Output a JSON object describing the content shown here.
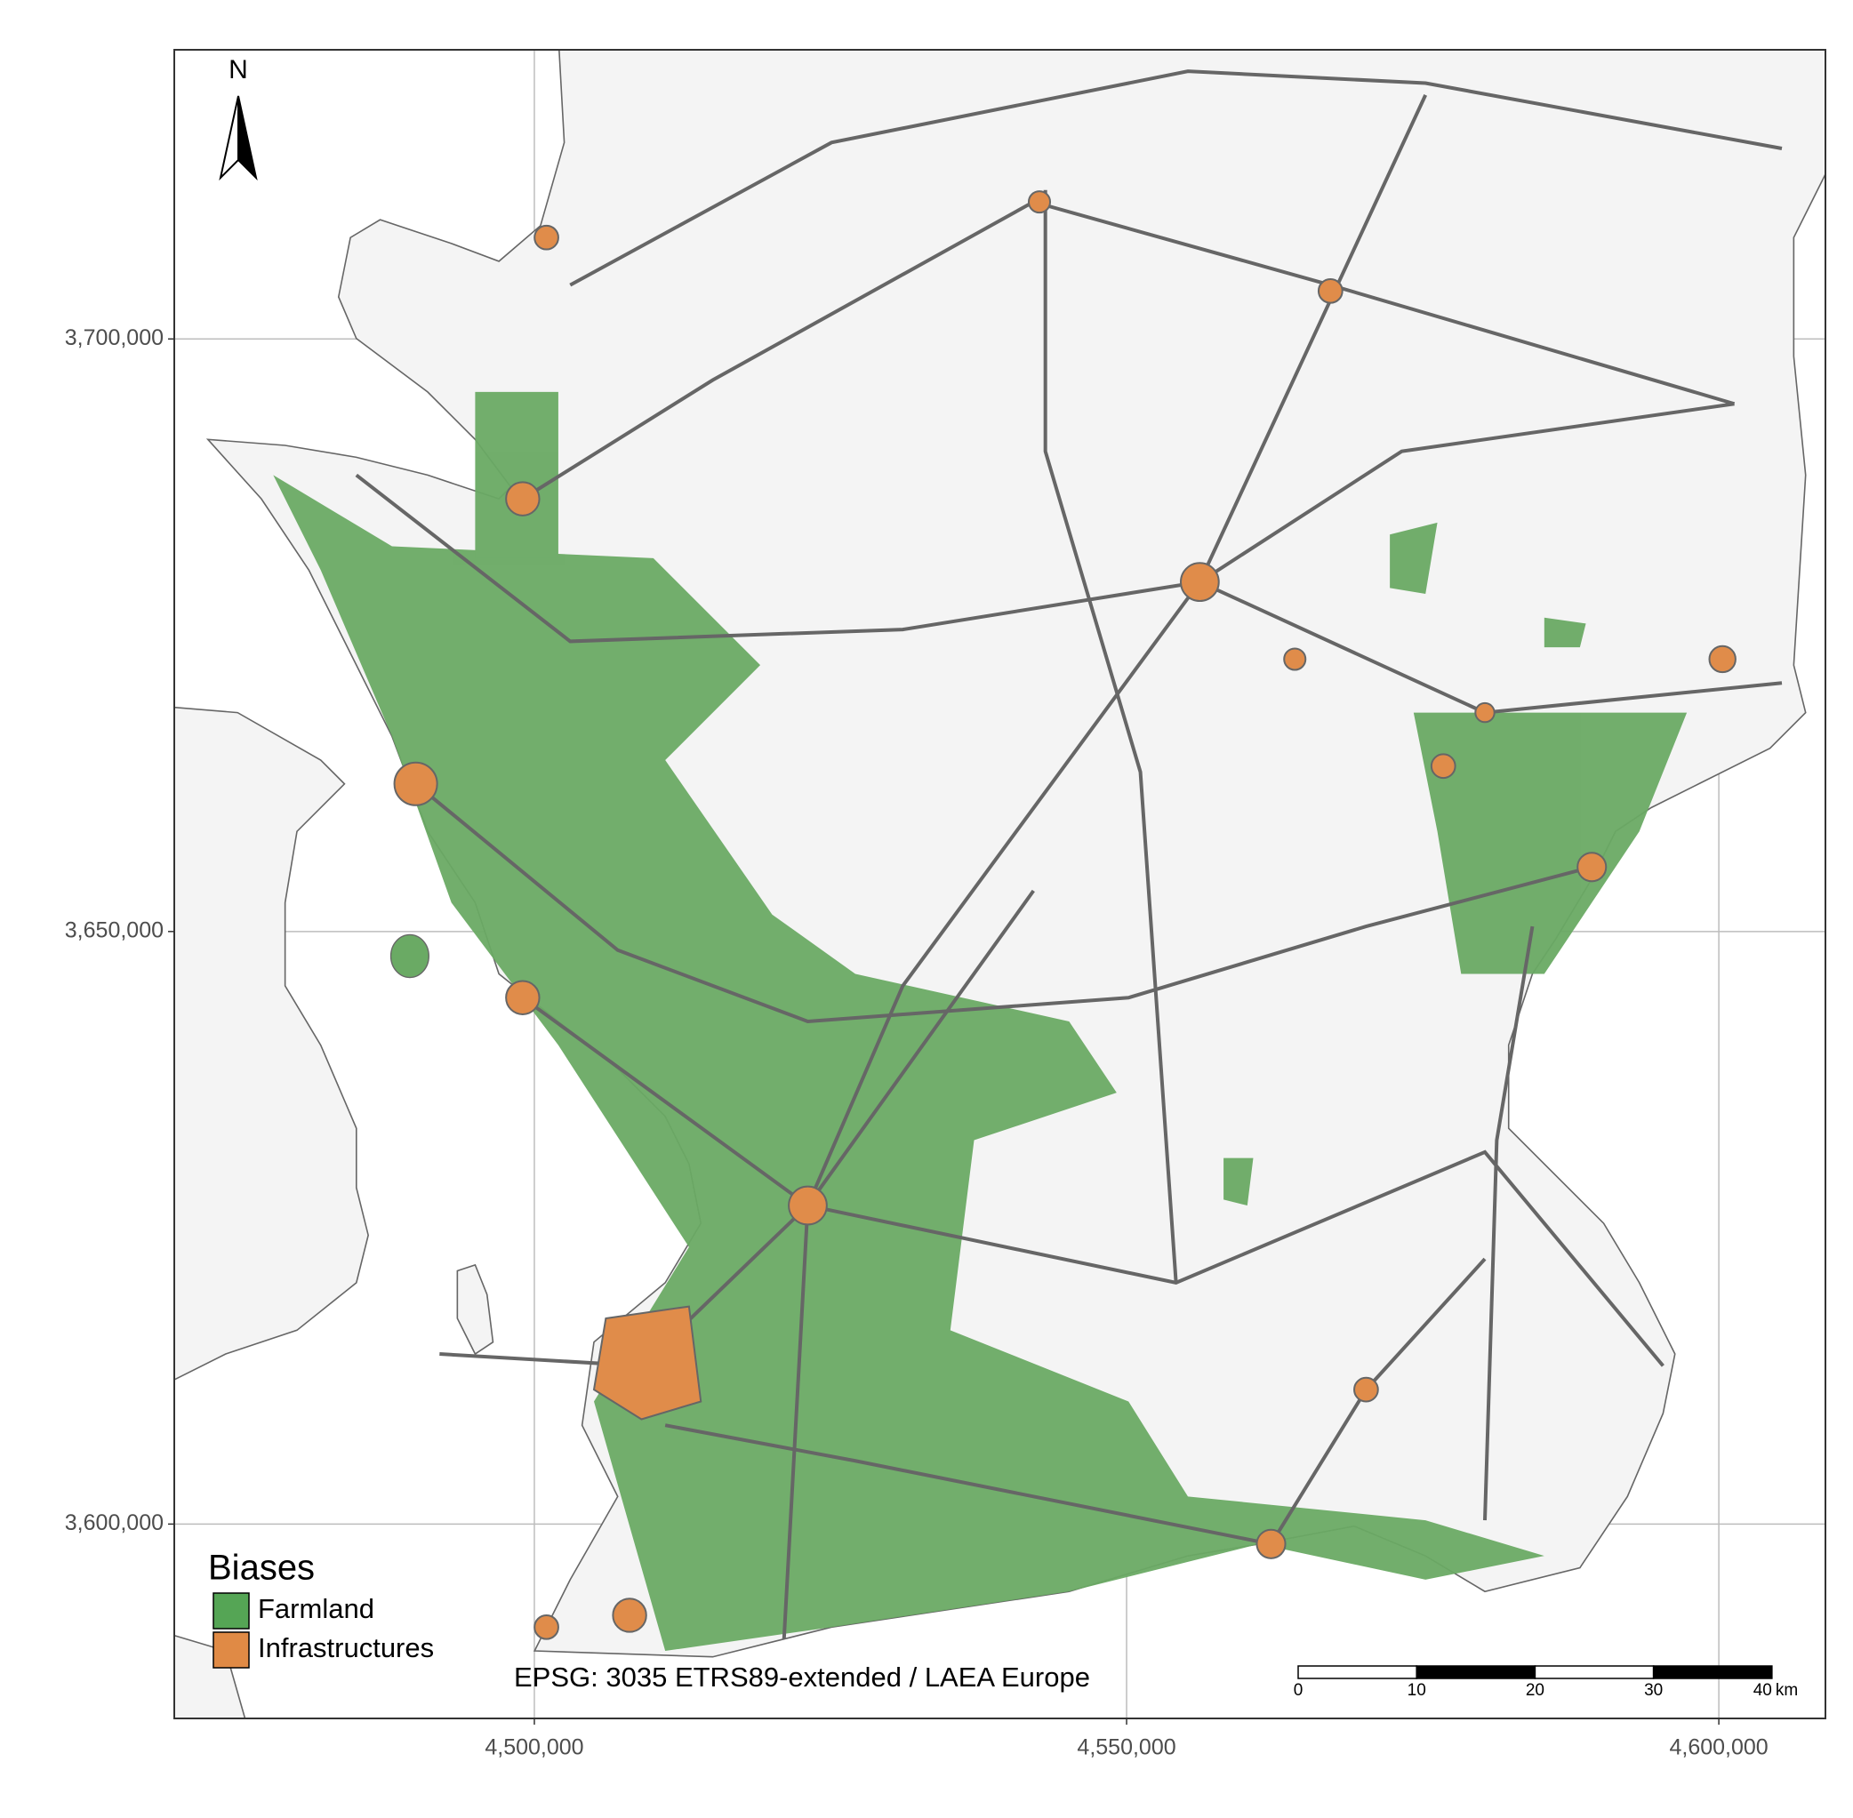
{
  "map": {
    "north_label": "N",
    "crs_label": "EPSG: 3035 ETRS89-extended / LAEA Europe",
    "xlim": [
      4469600,
      4609000
    ],
    "ylim": [
      3583600,
      3724400
    ],
    "xticks": [
      {
        "value": 4500000,
        "label": "4,500,000"
      },
      {
        "value": 4550000,
        "label": "4,550,000"
      },
      {
        "value": 4600000,
        "label": "4,600,000"
      }
    ],
    "yticks": [
      {
        "value": 3600000,
        "label": "3,600,000"
      },
      {
        "value": 3650000,
        "label": "3,650,000"
      },
      {
        "value": 3700000,
        "label": "3,700,000"
      }
    ],
    "grid": true,
    "legend": {
      "title": "Biases",
      "items": [
        {
          "name": "Farmland",
          "color": "#55a555"
        },
        {
          "name": "Infrastructures",
          "color": "#e08a45"
        }
      ]
    },
    "scale_bar": {
      "ticks": [
        0,
        10,
        20,
        30,
        40
      ],
      "unit": "km"
    }
  }
}
